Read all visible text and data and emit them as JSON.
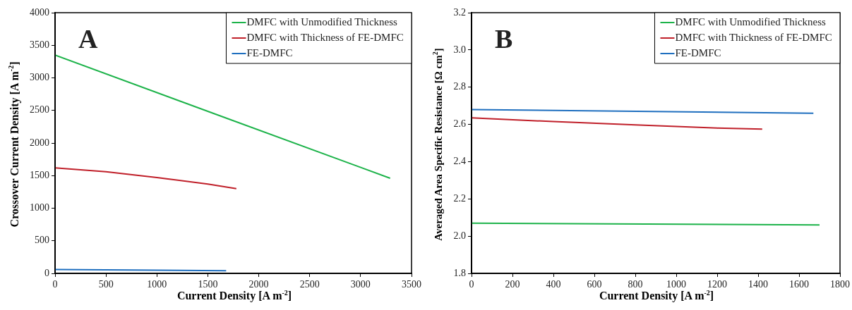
{
  "chart_data": [
    {
      "type": "line",
      "xlabel": "Current Density [A m$^{-2}$]",
      "ylabel": "Crossover Current Density [A m$^{-2}$]",
      "annotations": [
        "A"
      ],
      "xlim": [
        0,
        3500
      ],
      "xticks": [
        0,
        500,
        1000,
        1500,
        2000,
        2500,
        3000,
        3500
      ],
      "ylim": [
        0,
        4000
      ],
      "yticks": [
        0,
        500,
        1000,
        1500,
        2000,
        2500,
        3000,
        3500,
        4000
      ],
      "grid": false,
      "legend": "top right",
      "marker": "none",
      "line_style": "solid",
      "series": [
        {
          "name": "DMFC with Unmodified Thickness",
          "color": "#1db34a",
          "x": [
            0,
            1650,
            3290
          ],
          "values": [
            3350,
            2400,
            1460
          ]
        },
        {
          "name": "DMFC with Thickness of FE-DMFC",
          "color": "#c0202a",
          "x": [
            0,
            500,
            1000,
            1500,
            1780
          ],
          "values": [
            1620,
            1560,
            1470,
            1370,
            1300
          ]
        },
        {
          "name": "FE-DMFC",
          "color": "#1f6fbf",
          "x": [
            0,
            1680
          ],
          "values": [
            60,
            40
          ]
        }
      ]
    },
    {
      "type": "line",
      "xlabel": "Current Density [A m$^{-2}$]",
      "ylabel": "Averaged Area Specific Resistance [Ω cm$^{2}$]",
      "annotations": [
        "B"
      ],
      "xlim": [
        0,
        1800
      ],
      "xticks": [
        0,
        200,
        400,
        600,
        800,
        1000,
        1200,
        1400,
        1600,
        1800
      ],
      "ylim": [
        1.8,
        3.2
      ],
      "yticks": [
        {
          "value": 1.8,
          "label": "1.8"
        },
        {
          "value": 2,
          "label": "2.0"
        },
        {
          "value": 2.2,
          "label": "2.2"
        },
        {
          "value": 2.4,
          "label": "2.4"
        },
        {
          "value": 2.6,
          "label": "2.6"
        },
        {
          "value": 2.8,
          "label": "2.8"
        },
        {
          "value": 3,
          "label": "3.0"
        },
        {
          "value": 3.2,
          "label": "3.2"
        }
      ],
      "grid": false,
      "legend": "top right",
      "marker": "none",
      "line_style": "solid",
      "series": [
        {
          "name": "DMFC with Unmodified Thickness",
          "color": "#1db34a",
          "x": [
            0,
            1700
          ],
          "values": [
            2.07,
            2.06
          ]
        },
        {
          "name": "DMFC with Thickness of FE-DMFC",
          "color": "#c0202a",
          "x": [
            0,
            400,
            800,
            1200,
            1420
          ],
          "values": [
            2.635,
            2.615,
            2.597,
            2.58,
            2.575
          ]
        },
        {
          "name": "FE-DMFC",
          "color": "#1f6fbf",
          "x": [
            0,
            1670
          ],
          "values": [
            2.68,
            2.66
          ]
        }
      ]
    }
  ]
}
